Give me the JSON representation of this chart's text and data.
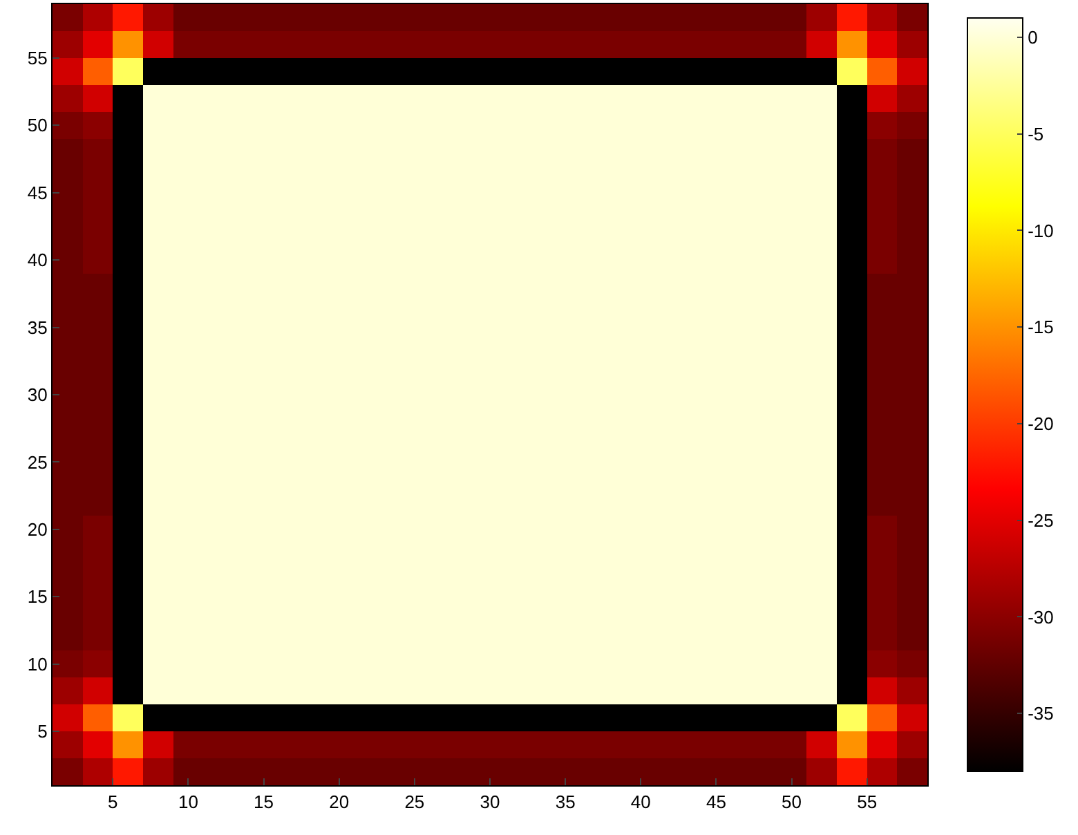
{
  "chart_data": {
    "type": "heatmap",
    "xlim": [
      1,
      59
    ],
    "ylim": [
      1,
      59
    ],
    "xticks": [
      5,
      10,
      15,
      20,
      25,
      30,
      35,
      40,
      45,
      50,
      55
    ],
    "yticks": [
      5,
      10,
      15,
      20,
      25,
      30,
      35,
      40,
      45,
      50,
      55
    ],
    "clim": [
      -38,
      1
    ],
    "cticks": [
      0,
      -5,
      -10,
      -15,
      -20,
      -25,
      -30,
      -35
    ],
    "cells": [
      [
        -31,
        -28,
        -22,
        -29,
        -32,
        -32,
        -32,
        -32,
        -32,
        -32,
        -32,
        -32,
        -32,
        -32,
        -32,
        -32,
        -32,
        -32,
        -32,
        -32,
        -32,
        -32,
        -32,
        -32,
        -32,
        -29,
        -22,
        -28,
        -31
      ],
      [
        -29,
        -25,
        -15,
        -26,
        -31,
        -31,
        -31,
        -31,
        -31,
        -31,
        -31,
        -31,
        -31,
        -31,
        -31,
        -31,
        -31,
        -31,
        -31,
        -31,
        -31,
        -31,
        -31,
        -31,
        -31,
        -26,
        -15,
        -25,
        -29
      ],
      [
        -26,
        -18,
        -5,
        -38,
        -38,
        -38,
        -38,
        -38,
        -38,
        -38,
        -38,
        -38,
        -38,
        -38,
        -38,
        -38,
        -38,
        -38,
        -38,
        -38,
        -38,
        -38,
        -38,
        -38,
        -38,
        -38,
        -5,
        -18,
        -26
      ],
      [
        -29,
        -26,
        -38,
        0,
        0,
        0,
        0,
        0,
        0,
        0,
        0,
        0,
        0,
        0,
        0,
        0,
        0,
        0,
        0,
        0,
        0,
        0,
        0,
        0,
        0,
        0,
        -38,
        -26,
        -29
      ],
      [
        -31,
        -30,
        -38,
        0,
        0,
        0,
        0,
        0,
        0,
        0,
        0,
        0,
        0,
        0,
        0,
        0,
        0,
        0,
        0,
        0,
        0,
        0,
        0,
        0,
        0,
        0,
        -38,
        -30,
        -31
      ],
      [
        -32,
        -31,
        -38,
        0,
        0,
        0,
        0,
        0,
        0,
        0,
        0,
        0,
        0,
        0,
        0,
        0,
        0,
        0,
        0,
        0,
        0,
        0,
        0,
        0,
        0,
        0,
        -38,
        -31,
        -32
      ],
      [
        -32,
        -31,
        -38,
        0,
        0,
        0,
        0,
        0,
        0,
        0,
        0,
        0,
        0,
        0,
        0,
        0,
        0,
        0,
        0,
        0,
        0,
        0,
        0,
        0,
        0,
        0,
        -38,
        -31,
        -32
      ],
      [
        -32,
        -31,
        -38,
        0,
        0,
        0,
        0,
        0,
        0,
        0,
        0,
        0,
        0,
        0,
        0,
        0,
        0,
        0,
        0,
        0,
        0,
        0,
        0,
        0,
        0,
        0,
        -38,
        -31,
        -32
      ],
      [
        -32,
        -31,
        -38,
        0,
        0,
        0,
        0,
        0,
        0,
        0,
        0,
        0,
        0,
        0,
        0,
        0,
        0,
        0,
        0,
        0,
        0,
        0,
        0,
        0,
        0,
        0,
        -38,
        -31,
        -32
      ],
      [
        -32,
        -31,
        -38,
        0,
        0,
        0,
        0,
        0,
        0,
        0,
        0,
        0,
        0,
        0,
        0,
        0,
        0,
        0,
        0,
        0,
        0,
        0,
        0,
        0,
        0,
        0,
        -38,
        -31,
        -32
      ],
      [
        -32,
        -32,
        -38,
        0,
        0,
        0,
        0,
        0,
        0,
        0,
        0,
        0,
        0,
        0,
        0,
        0,
        0,
        0,
        0,
        0,
        0,
        0,
        0,
        0,
        0,
        0,
        -38,
        -32,
        -32
      ],
      [
        -32,
        -32,
        -38,
        0,
        0,
        0,
        0,
        0,
        0,
        0,
        0,
        0,
        0,
        0,
        0,
        0,
        0,
        0,
        0,
        0,
        0,
        0,
        0,
        0,
        0,
        0,
        -38,
        -32,
        -32
      ],
      [
        -32,
        -32,
        -38,
        0,
        0,
        0,
        0,
        0,
        0,
        0,
        0,
        0,
        0,
        0,
        0,
        0,
        0,
        0,
        0,
        0,
        0,
        0,
        0,
        0,
        0,
        0,
        -38,
        -32,
        -32
      ],
      [
        -32,
        -32,
        -38,
        0,
        0,
        0,
        0,
        0,
        0,
        0,
        0,
        0,
        0,
        0,
        0,
        0,
        0,
        0,
        0,
        0,
        0,
        0,
        0,
        0,
        0,
        0,
        -38,
        -32,
        -32
      ],
      [
        -32,
        -32,
        -38,
        0,
        0,
        0,
        0,
        0,
        0,
        0,
        0,
        0,
        0,
        0,
        0,
        0,
        0,
        0,
        0,
        0,
        0,
        0,
        0,
        0,
        0,
        0,
        -38,
        -32,
        -32
      ],
      [
        -32,
        -32,
        -38,
        0,
        0,
        0,
        0,
        0,
        0,
        0,
        0,
        0,
        0,
        0,
        0,
        0,
        0,
        0,
        0,
        0,
        0,
        0,
        0,
        0,
        0,
        0,
        -38,
        -32,
        -32
      ],
      [
        -32,
        -32,
        -38,
        0,
        0,
        0,
        0,
        0,
        0,
        0,
        0,
        0,
        0,
        0,
        0,
        0,
        0,
        0,
        0,
        0,
        0,
        0,
        0,
        0,
        0,
        0,
        -38,
        -32,
        -32
      ],
      [
        -32,
        -32,
        -38,
        0,
        0,
        0,
        0,
        0,
        0,
        0,
        0,
        0,
        0,
        0,
        0,
        0,
        0,
        0,
        0,
        0,
        0,
        0,
        0,
        0,
        0,
        0,
        -38,
        -32,
        -32
      ],
      [
        -32,
        -32,
        -38,
        0,
        0,
        0,
        0,
        0,
        0,
        0,
        0,
        0,
        0,
        0,
        0,
        0,
        0,
        0,
        0,
        0,
        0,
        0,
        0,
        0,
        0,
        0,
        -38,
        -32,
        -32
      ],
      [
        -32,
        -31,
        -38,
        0,
        0,
        0,
        0,
        0,
        0,
        0,
        0,
        0,
        0,
        0,
        0,
        0,
        0,
        0,
        0,
        0,
        0,
        0,
        0,
        0,
        0,
        0,
        -38,
        -31,
        -32
      ],
      [
        -32,
        -31,
        -38,
        0,
        0,
        0,
        0,
        0,
        0,
        0,
        0,
        0,
        0,
        0,
        0,
        0,
        0,
        0,
        0,
        0,
        0,
        0,
        0,
        0,
        0,
        0,
        -38,
        -31,
        -32
      ],
      [
        -32,
        -31,
        -38,
        0,
        0,
        0,
        0,
        0,
        0,
        0,
        0,
        0,
        0,
        0,
        0,
        0,
        0,
        0,
        0,
        0,
        0,
        0,
        0,
        0,
        0,
        0,
        -38,
        -31,
        -32
      ],
      [
        -32,
        -31,
        -38,
        0,
        0,
        0,
        0,
        0,
        0,
        0,
        0,
        0,
        0,
        0,
        0,
        0,
        0,
        0,
        0,
        0,
        0,
        0,
        0,
        0,
        0,
        0,
        -38,
        -31,
        -32
      ],
      [
        -32,
        -31,
        -38,
        0,
        0,
        0,
        0,
        0,
        0,
        0,
        0,
        0,
        0,
        0,
        0,
        0,
        0,
        0,
        0,
        0,
        0,
        0,
        0,
        0,
        0,
        0,
        -38,
        -31,
        -32
      ],
      [
        -31,
        -30,
        -38,
        0,
        0,
        0,
        0,
        0,
        0,
        0,
        0,
        0,
        0,
        0,
        0,
        0,
        0,
        0,
        0,
        0,
        0,
        0,
        0,
        0,
        0,
        0,
        -38,
        -30,
        -31
      ],
      [
        -29,
        -26,
        -38,
        0,
        0,
        0,
        0,
        0,
        0,
        0,
        0,
        0,
        0,
        0,
        0,
        0,
        0,
        0,
        0,
        0,
        0,
        0,
        0,
        0,
        0,
        0,
        -38,
        -26,
        -29
      ],
      [
        -26,
        -18,
        -5,
        -38,
        -38,
        -38,
        -38,
        -38,
        -38,
        -38,
        -38,
        -38,
        -38,
        -38,
        -38,
        -38,
        -38,
        -38,
        -38,
        -38,
        -38,
        -38,
        -38,
        -38,
        -38,
        -38,
        -5,
        -18,
        -26
      ],
      [
        -29,
        -25,
        -15,
        -26,
        -31,
        -31,
        -31,
        -31,
        -31,
        -31,
        -31,
        -31,
        -31,
        -31,
        -31,
        -31,
        -31,
        -31,
        -31,
        -31,
        -31,
        -31,
        -31,
        -31,
        -31,
        -26,
        -15,
        -25,
        -29
      ],
      [
        -31,
        -28,
        -22,
        -29,
        -32,
        -32,
        -32,
        -32,
        -32,
        -32,
        -32,
        -32,
        -32,
        -32,
        -32,
        -32,
        -32,
        -32,
        -32,
        -32,
        -32,
        -32,
        -32,
        -32,
        -32,
        -29,
        -22,
        -28,
        -31
      ]
    ]
  }
}
